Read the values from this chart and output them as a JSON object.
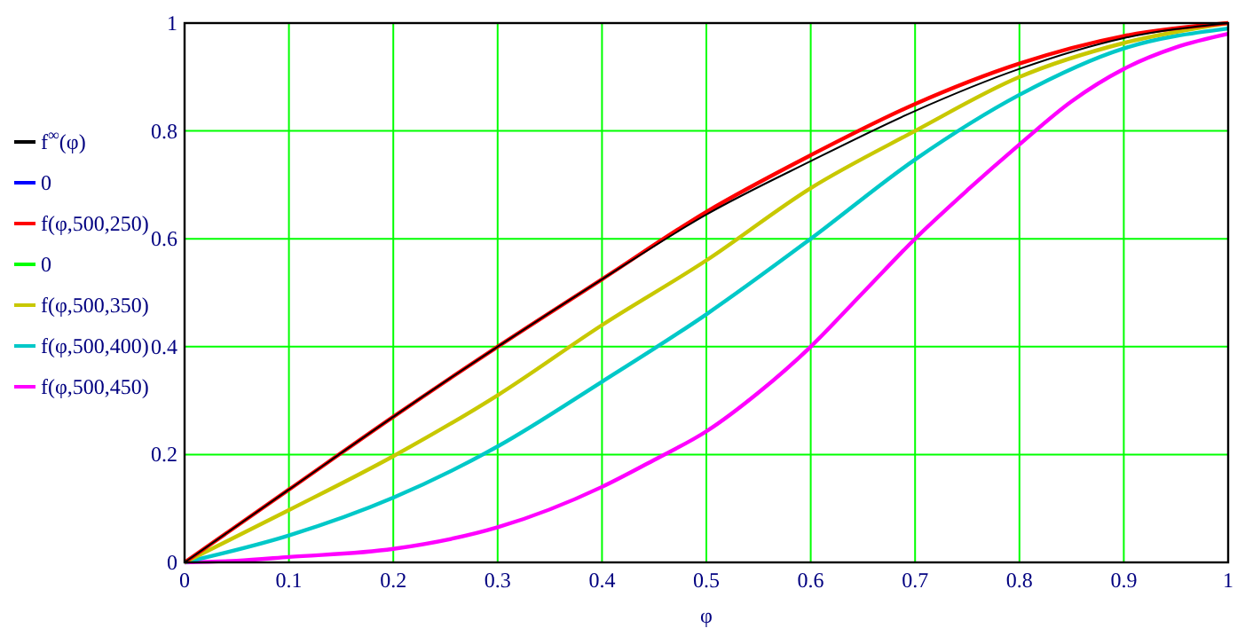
{
  "chart_data": {
    "type": "line",
    "xlabel": "φ",
    "x": [
      0,
      0.1,
      0.2,
      0.3,
      0.4,
      0.5,
      0.6,
      0.7,
      0.8,
      0.9,
      1
    ],
    "series": [
      {
        "name": "f$^{∞}$(φ)",
        "color": "#000000",
        "values": [
          0,
          0.135,
          0.27,
          0.4,
          0.525,
          0.645,
          0.744,
          0.837,
          0.915,
          0.972,
          1
        ]
      },
      {
        "name": "0",
        "color": "#0000ff",
        "values": [
          null,
          null,
          null,
          null,
          null,
          null,
          null,
          null,
          null,
          null,
          null
        ]
      },
      {
        "name": "f(φ,500,250)",
        "color": "#ff0000",
        "values": [
          0,
          0.135,
          0.27,
          0.4,
          0.525,
          0.65,
          0.755,
          0.85,
          0.925,
          0.976,
          1
        ]
      },
      {
        "name": "0",
        "color": "#00ff00",
        "values": [
          null,
          null,
          null,
          null,
          null,
          null,
          null,
          null,
          null,
          null,
          null
        ]
      },
      {
        "name": "f(φ,500,350)",
        "color": "#c8c800",
        "values": [
          0,
          0.097,
          0.197,
          0.31,
          0.44,
          0.56,
          0.694,
          0.8,
          0.9,
          0.963,
          1
        ]
      },
      {
        "name": "f(φ,500,400)",
        "color": "#00c8c8",
        "values": [
          0,
          0.05,
          0.12,
          0.215,
          0.335,
          0.46,
          0.6,
          0.747,
          0.867,
          0.953,
          0.99
        ]
      },
      {
        "name": "f(φ,500,450)",
        "color": "#ff00ff",
        "x": [
          0,
          0.05,
          0.1,
          0.2,
          0.3,
          0.4,
          0.45,
          0.5,
          0.55,
          0.6,
          0.65,
          0.7,
          0.75,
          0.8,
          0.85,
          0.9,
          0.95,
          1
        ],
        "values": [
          0,
          0.003,
          0.01,
          0.025,
          0.065,
          0.14,
          0.19,
          0.243,
          0.315,
          0.4,
          0.5,
          0.6,
          0.69,
          0.775,
          0.855,
          0.915,
          0.955,
          0.98
        ]
      }
    ],
    "xlim": [
      0,
      1
    ],
    "xticks": [
      0,
      0.1,
      0.2,
      0.3,
      0.4,
      0.5,
      0.6,
      0.7,
      0.8,
      0.9,
      1
    ],
    "ylim": [
      0,
      1
    ],
    "yticks": [
      0,
      0.2,
      0.4,
      0.6,
      0.8,
      1
    ],
    "grid": true,
    "legend": "left",
    "marker": "none",
    "line_style": "solid"
  }
}
